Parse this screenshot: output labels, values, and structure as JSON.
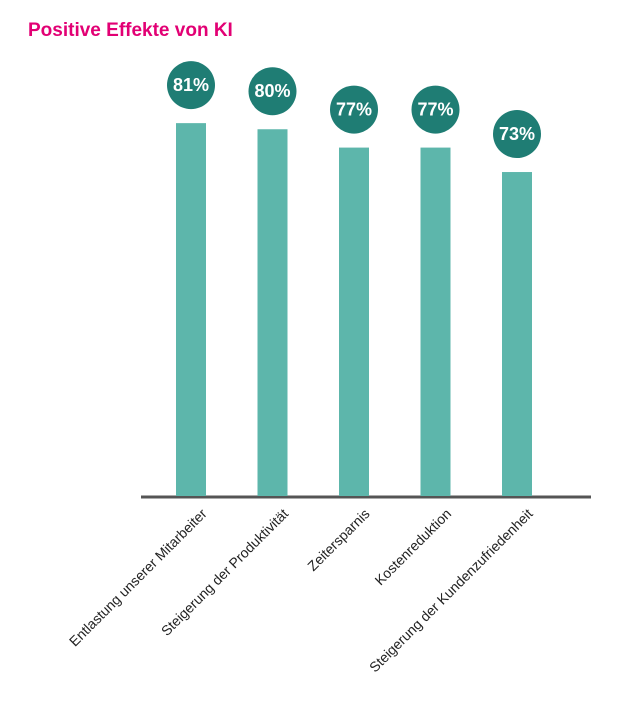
{
  "chart_data": {
    "type": "bar",
    "title": "Positive Effekte von KI",
    "categories": [
      "Entlastung unserer Mitarbeiter",
      "Steigerung der Produktivität",
      "Zeitersparnis",
      "Kostenreduktion",
      "Steigerung der Kundenzufriedenheit"
    ],
    "values": [
      81,
      80,
      77,
      77,
      73
    ],
    "value_labels": [
      "81%",
      "80%",
      "77%",
      "77%",
      "73%"
    ],
    "color": "#5db6ab",
    "label_color": "#1f7d74",
    "ylim": [
      20,
      100
    ]
  }
}
